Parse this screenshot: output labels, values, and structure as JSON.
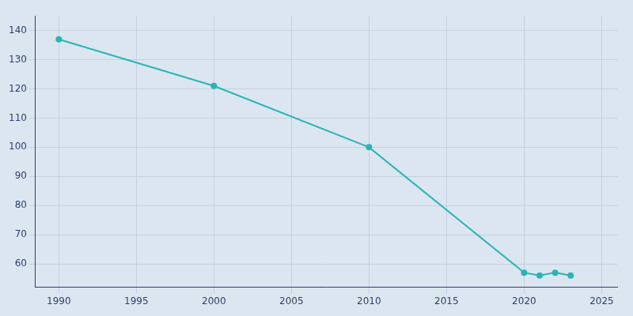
{
  "chart_data": {
    "type": "line",
    "x": [
      1990,
      2000,
      2010,
      2020,
      2021,
      2022,
      2023
    ],
    "values": [
      137,
      121,
      100,
      57,
      56,
      57,
      56
    ],
    "color": "#2ab5b5",
    "marker": "circle",
    "xlim": [
      1988.5,
      2026
    ],
    "xticks": [
      1990,
      1995,
      2000,
      2005,
      2010,
      2015,
      2020,
      2025
    ],
    "ylim": [
      52,
      145
    ],
    "yticks": [
      60,
      70,
      80,
      90,
      100,
      110,
      120,
      130,
      140
    ],
    "grid": true
  }
}
